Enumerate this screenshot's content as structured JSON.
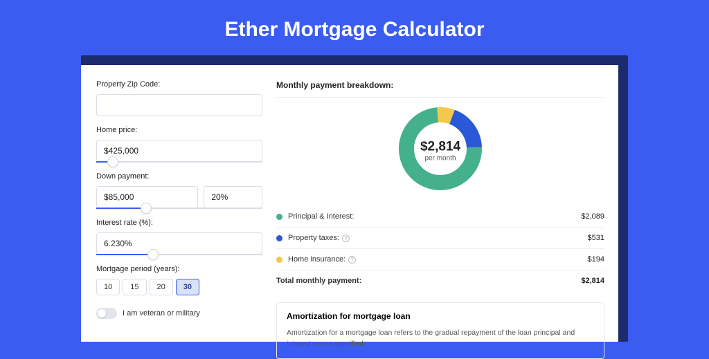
{
  "title": "Ether Mortgage Calculator",
  "colors": {
    "principal": "#45b08c",
    "taxes": "#2a58d6",
    "insurance": "#f2c94c"
  },
  "form": {
    "zip_label": "Property Zip Code:",
    "zip_value": "",
    "home_price_label": "Home price:",
    "home_price_value": "$425,000",
    "home_price_slider_pct": 10,
    "down_label": "Down payment:",
    "down_value": "$85,000",
    "down_pct": "20%",
    "down_slider_pct": 30,
    "rate_label": "Interest rate (%):",
    "rate_value": "6.230%",
    "rate_slider_pct": 34,
    "period_label": "Mortgage period (years):",
    "periods": [
      "10",
      "15",
      "20",
      "30"
    ],
    "period_active_index": 3,
    "veteran_label": "I am veteran or military"
  },
  "breakdown": {
    "title": "Monthly payment breakdown:",
    "center_amount": "$2,814",
    "center_sub": "per month",
    "donut_size": 120,
    "donut_stroke": 22,
    "segments": [
      {
        "key": "principal",
        "label": "Principal & Interest:",
        "value": "$2,089",
        "pct": 74.2,
        "has_info": false
      },
      {
        "key": "taxes",
        "label": "Property taxes:",
        "value": "$531",
        "pct": 18.9,
        "has_info": true
      },
      {
        "key": "insurance",
        "label": "Home insurance:",
        "value": "$194",
        "pct": 6.9,
        "has_info": true
      }
    ],
    "total_label": "Total monthly payment:",
    "total_value": "$2,814"
  },
  "amortization": {
    "title": "Amortization for mortgage loan",
    "text": "Amortization for a mortgage loan refers to the gradual repayment of the loan principal and interest over a specified"
  }
}
